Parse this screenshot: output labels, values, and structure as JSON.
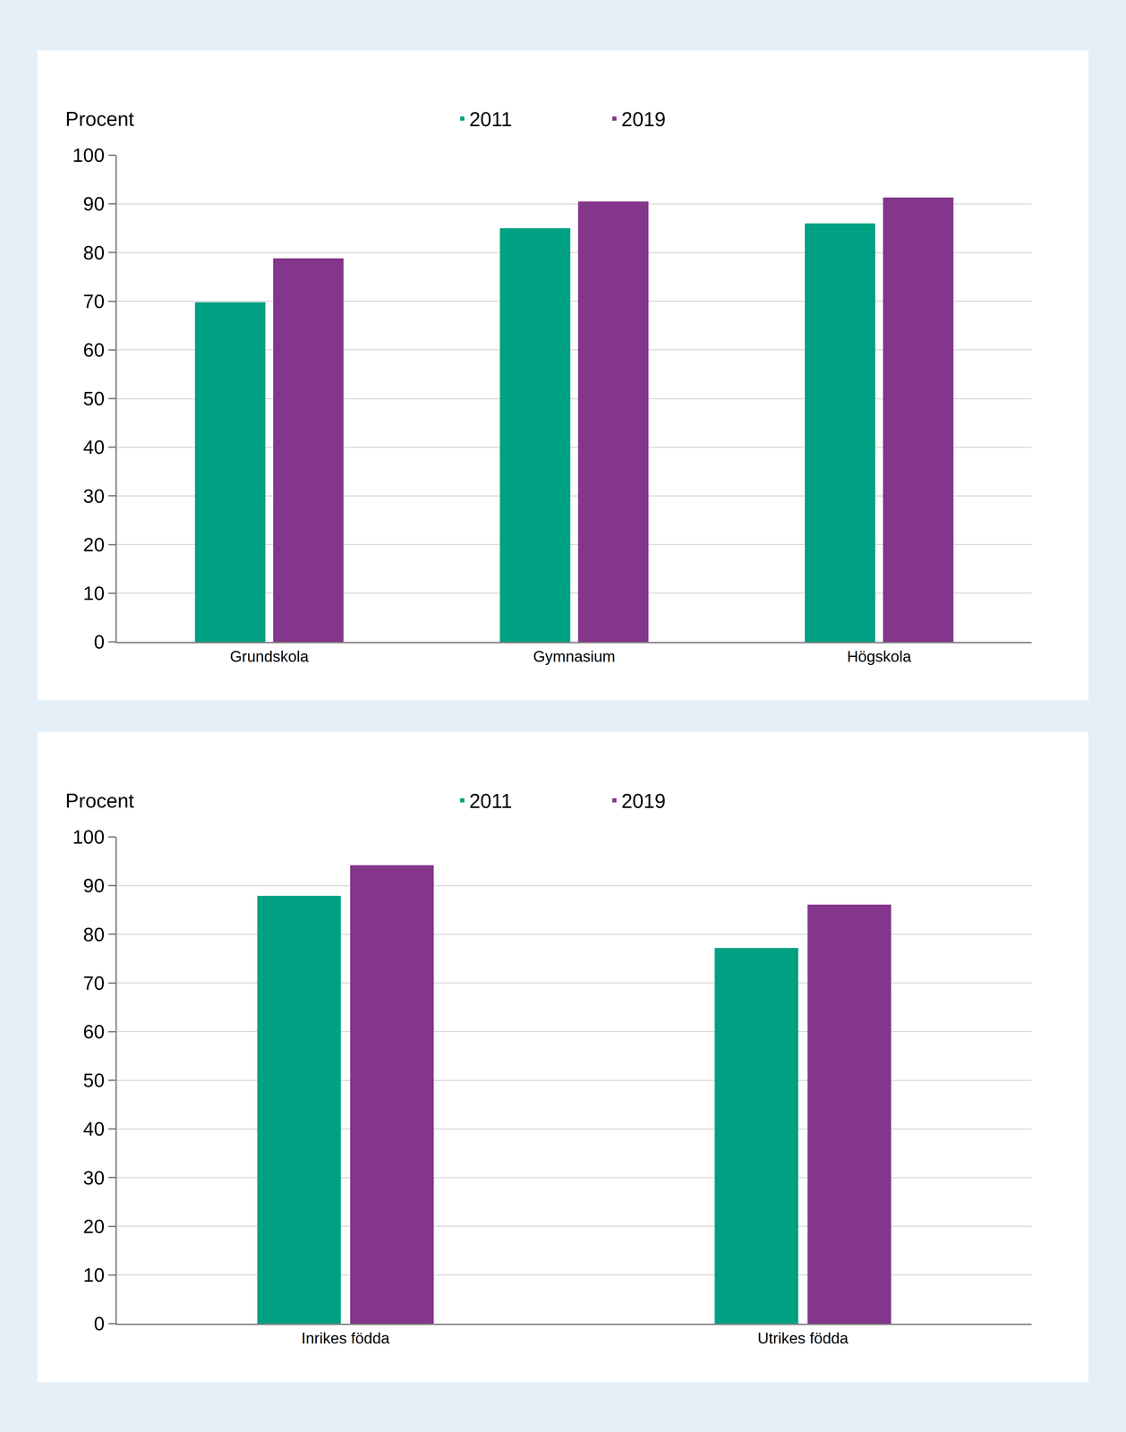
{
  "chart_data": [
    {
      "type": "bar",
      "y_label": "Procent",
      "categories": [
        "Grundskola",
        "Gymnasium",
        "Högskola"
      ],
      "series": [
        {
          "name": "2011",
          "color": "#00a082",
          "values": [
            69.8,
            85.0,
            86.0
          ]
        },
        {
          "name": "2019",
          "color": "#83368b",
          "values": [
            78.8,
            90.5,
            91.3
          ]
        }
      ],
      "ylim": [
        0,
        100
      ],
      "yticks": [
        0,
        10,
        20,
        30,
        40,
        50,
        60,
        70,
        80,
        90,
        100
      ],
      "grid": true,
      "legend": "top"
    },
    {
      "type": "bar",
      "y_label": "Procent",
      "categories": [
        "Inrikes födda",
        "Utrikes födda"
      ],
      "series": [
        {
          "name": "2011",
          "color": "#00a082",
          "values": [
            87.9,
            77.2
          ]
        },
        {
          "name": "2019",
          "color": "#83368b",
          "values": [
            94.2,
            86.1
          ]
        }
      ],
      "ylim": [
        0,
        100
      ],
      "yticks": [
        0,
        10,
        20,
        30,
        40,
        50,
        60,
        70,
        80,
        90,
        100
      ],
      "grid": true,
      "legend": "top"
    }
  ]
}
